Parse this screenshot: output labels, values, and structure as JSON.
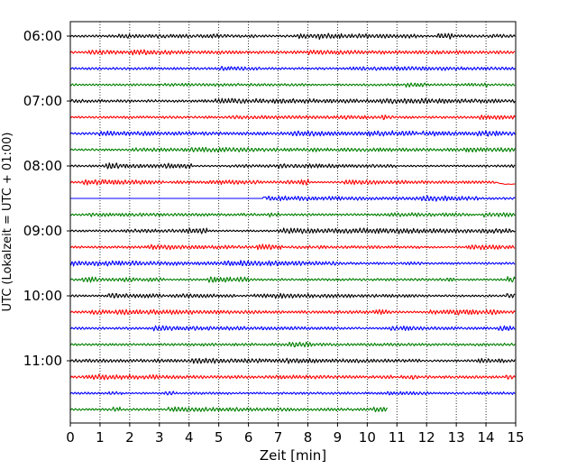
{
  "chart_data": {
    "type": "line",
    "title": "",
    "xlabel": "Zeit  [min]",
    "ylabel": "UTC (Lokalzeit = UTC + 01:00)",
    "xlim": [
      0,
      15
    ],
    "x_ticks": [
      "0",
      "1",
      "2",
      "3",
      "4",
      "5",
      "6",
      "7",
      "8",
      "9",
      "10",
      "11",
      "12",
      "13",
      "14",
      "15"
    ],
    "x_grid": "dotted vertical lines at each minute",
    "y_ticks": [
      {
        "label": "06:00",
        "row": 0
      },
      {
        "label": "07:00",
        "row": 4
      },
      {
        "label": "08:00",
        "row": 8
      },
      {
        "label": "09:00",
        "row": 12
      },
      {
        "label": "10:00",
        "row": 16
      },
      {
        "label": "11:00",
        "row": 20
      }
    ],
    "trace_interval_min": 15,
    "trace_colors": [
      "#000000",
      "#ff0000",
      "#0000ff",
      "#008000"
    ],
    "traces": [
      {
        "start": "06:00",
        "color": "#000000",
        "end_min": 15
      },
      {
        "start": "06:15",
        "color": "#ff0000",
        "end_min": 15
      },
      {
        "start": "06:30",
        "color": "#0000ff",
        "end_min": 15
      },
      {
        "start": "06:45",
        "color": "#008000",
        "end_min": 15
      },
      {
        "start": "07:00",
        "color": "#000000",
        "end_min": 15
      },
      {
        "start": "07:15",
        "color": "#ff0000",
        "end_min": 15
      },
      {
        "start": "07:30",
        "color": "#0000ff",
        "end_min": 15
      },
      {
        "start": "07:45",
        "color": "#008000",
        "end_min": 15
      },
      {
        "start": "08:00",
        "color": "#000000",
        "end_min": 15
      },
      {
        "start": "08:15",
        "color": "#ff0000",
        "end_min": 15,
        "note": "baseline dip near 14.3 min"
      },
      {
        "start": "08:30",
        "color": "#0000ff",
        "end_min": 15,
        "flat_until_min": 6.5
      },
      {
        "start": "08:45",
        "color": "#008000",
        "end_min": 15
      },
      {
        "start": "09:00",
        "color": "#000000",
        "end_min": 15
      },
      {
        "start": "09:15",
        "color": "#ff0000",
        "end_min": 15
      },
      {
        "start": "09:30",
        "color": "#0000ff",
        "end_min": 15
      },
      {
        "start": "09:45",
        "color": "#008000",
        "end_min": 15
      },
      {
        "start": "10:00",
        "color": "#000000",
        "end_min": 15
      },
      {
        "start": "10:15",
        "color": "#ff0000",
        "end_min": 15
      },
      {
        "start": "10:30",
        "color": "#0000ff",
        "end_min": 15
      },
      {
        "start": "10:45",
        "color": "#008000",
        "end_min": 15
      },
      {
        "start": "11:00",
        "color": "#000000",
        "end_min": 15
      },
      {
        "start": "11:15",
        "color": "#ff0000",
        "end_min": 15
      },
      {
        "start": "11:30",
        "color": "#0000ff",
        "end_min": 15
      },
      {
        "start": "11:45",
        "color": "#008000",
        "end_min": 10.7
      }
    ]
  }
}
